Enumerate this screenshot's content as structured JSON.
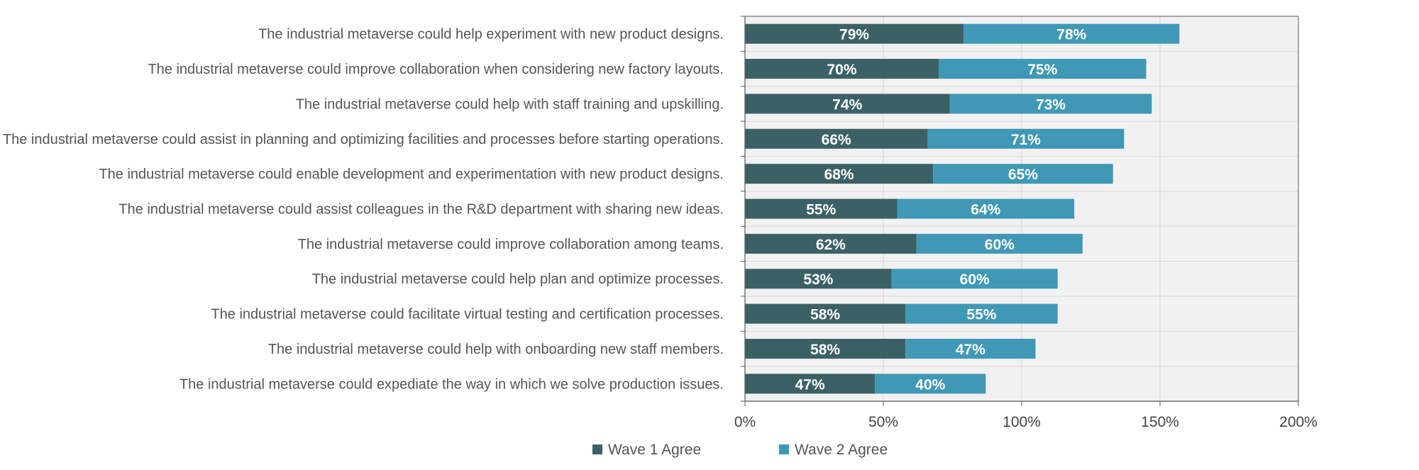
{
  "chart_data": {
    "type": "bar",
    "orientation": "horizontal",
    "stacked": true,
    "categories": [
      "The industrial metaverse could help experiment with new product designs.",
      "The industrial metaverse could improve collaboration when considering new factory layouts.",
      "The industrial metaverse could help with staff training and upskilling.",
      "The industrial metaverse could assist in planning and optimizing facilities and processes before starting operations.",
      "The industrial metaverse could enable development and experimentation with new product designs.",
      "The industrial metaverse could assist colleagues in the R&D department with sharing new ideas.",
      "The industrial metaverse could improve collaboration among teams.",
      "The industrial metaverse could help plan and optimize processes.",
      "The industrial metaverse could facilitate virtual testing and certification processes.",
      "The industrial metaverse could help with onboarding new staff members.",
      "The industrial metaverse could expediate the way in which we solve production issues."
    ],
    "series": [
      {
        "name": "Wave 1 Agree",
        "color": "#3b6166",
        "values": [
          79,
          70,
          74,
          66,
          68,
          55,
          62,
          53,
          58,
          58,
          47
        ]
      },
      {
        "name": "Wave 2 Agree",
        "color": "#3f98b6",
        "values": [
          78,
          75,
          73,
          71,
          65,
          64,
          60,
          60,
          55,
          47,
          40
        ]
      }
    ],
    "xlim": [
      0,
      200
    ],
    "xticks": [
      "0%",
      "50%",
      "100%",
      "150%",
      "200%"
    ],
    "xtick_values": [
      0,
      50,
      100,
      150,
      200
    ],
    "value_suffix": "%",
    "grid": true,
    "plot_background": "#f1f1f1",
    "legend_position": "bottom"
  }
}
